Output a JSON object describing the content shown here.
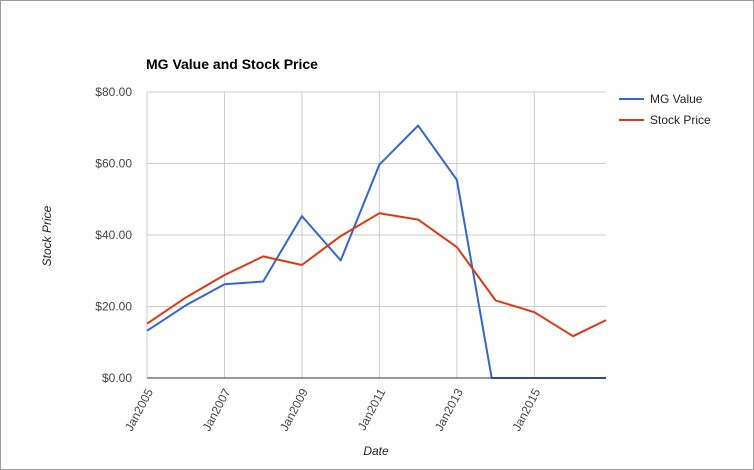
{
  "colors": {
    "mg_value": "#3366cc",
    "stock_price": "#dc3912",
    "grid": "#cccccc",
    "baseline": "#333333"
  },
  "chart_data": {
    "type": "line",
    "title": "MG Value and Stock Price",
    "xlabel": "Date",
    "ylabel": "Stock Price",
    "x": [
      2005,
      2006,
      2007,
      2008,
      2009,
      2010,
      2011,
      2012,
      2013,
      2014,
      2015,
      2016,
      2016.85
    ],
    "xlim": [
      2005,
      2016.85
    ],
    "x_ticks": [
      2005,
      2007,
      2009,
      2011,
      2013,
      2015
    ],
    "x_tick_labels": [
      "Jan2005",
      "Jan2007",
      "Jan2009",
      "Jan2011",
      "Jan2013",
      "Jan2015"
    ],
    "ylim": [
      0,
      80
    ],
    "y_ticks": [
      0,
      20,
      40,
      60,
      80
    ],
    "y_tick_labels": [
      "$0.00",
      "$20.00",
      "$40.00",
      "$60.00",
      "$80.00"
    ],
    "grid": true,
    "legend_position": "top-right",
    "series": [
      {
        "name": "MG Value",
        "points": [
          [
            2005,
            13.2
          ],
          [
            2006,
            20.3
          ],
          [
            2007,
            26.2
          ],
          [
            2008,
            27.0
          ],
          [
            2009,
            45.3
          ],
          [
            2010,
            32.9
          ],
          [
            2011,
            59.7
          ],
          [
            2012,
            70.6
          ],
          [
            2013,
            55.4
          ],
          [
            2013.9,
            0
          ],
          [
            2016.85,
            0
          ]
        ]
      },
      {
        "name": "Stock Price",
        "points": [
          [
            2005,
            15.2
          ],
          [
            2006,
            22.5
          ],
          [
            2007,
            28.8
          ],
          [
            2008,
            34.0
          ],
          [
            2009,
            31.6
          ],
          [
            2010,
            39.7
          ],
          [
            2011,
            46.1
          ],
          [
            2012,
            44.3
          ],
          [
            2013,
            36.6
          ],
          [
            2014,
            21.7
          ],
          [
            2015,
            18.4
          ],
          [
            2016,
            11.7
          ],
          [
            2016.85,
            16.2
          ]
        ]
      }
    ]
  }
}
